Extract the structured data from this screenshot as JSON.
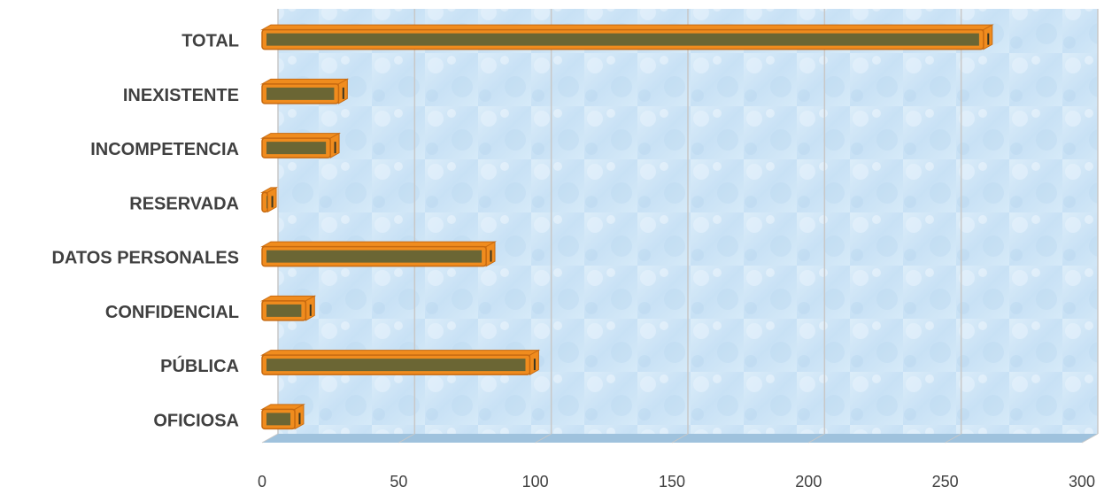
{
  "chart_data": {
    "type": "bar",
    "orientation": "horizontal",
    "categories": [
      "OFICIOSA",
      "PÚBLICA",
      "CONFIDENCIAL",
      "DATOS PERSONALES",
      "RESERVADA",
      "INCOMPETENCIA",
      "INEXISTENTE",
      "TOTAL"
    ],
    "values": [
      12,
      98,
      16,
      82,
      2,
      25,
      28,
      264
    ],
    "title": "",
    "xlabel": "",
    "ylabel": "",
    "xlim": [
      0,
      300
    ],
    "xticks": [
      "0",
      "50",
      "100",
      "150",
      "200",
      "250",
      "300"
    ],
    "grid": true,
    "legend": "none",
    "colors": {
      "bar_fill": "#6b6634",
      "bar_frame": "#f08c1e",
      "bar_frame_dark": "#c76a10",
      "plot_bg": "#cfe6f7",
      "gridline": "#c8c8c8",
      "floor": "#9fc2dd"
    }
  }
}
